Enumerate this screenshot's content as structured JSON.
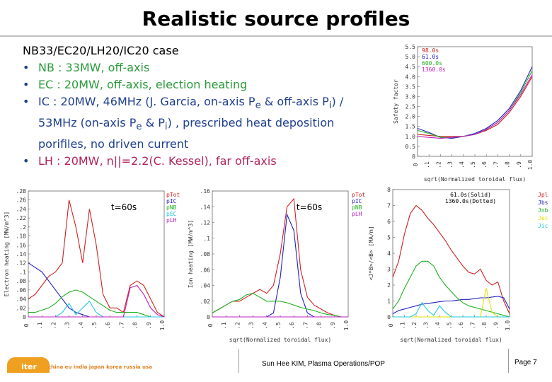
{
  "title": "Realistic source profiles",
  "bullets": {
    "case": "NB33/EC20/LH20/IC20 case",
    "nb": "NB : 33MW, off-axis",
    "ec": "EC : 20MW, off-axis, election heating",
    "ic_line1_a": "IC : 20MW,  46MHz (J. Garcia, on-axis P",
    "ic_sub_e": "e",
    "ic_line1_b": " & off-axis P",
    "ic_sub_i": "i",
    "ic_line1_c": ") /",
    "ic_line2_a": "53MHz (on-axis P",
    "ic_line2_b": " & P",
    "ic_line2_c": ") , prescribed heat deposition",
    "ic_line3": "porifiles, no driven current",
    "lh": "LH : 20MW, n||=2.2(C. Kessel), far off-axis"
  },
  "footer": {
    "center": "Sun Hee KIM, Plasma Operations/POP",
    "page": "Page 7",
    "logo": "iter",
    "countries": "china eu india japan korea russia usa"
  },
  "colors": {
    "red": "#d02020",
    "blue": "#2020c0",
    "green": "#20b020",
    "cyan": "#20c8e0",
    "magenta": "#c020c0",
    "yellow": "#e0e000",
    "purple": "#b040c0"
  },
  "chart_data": [
    {
      "id": "safety",
      "type": "line",
      "title": "",
      "xlabel": "sqrt(Normalized toroidal flux)",
      "ylabel": "Safety factor",
      "xlim": [
        0,
        1.0
      ],
      "ylim": [
        0,
        5.5
      ],
      "xticks": [
        "0",
        ".1",
        ".2",
        ".3",
        ".4",
        ".5",
        ".6",
        ".7",
        ".8",
        ".9",
        "1.0"
      ],
      "yticks": [
        "0",
        "0.5",
        "1.0",
        "1.5",
        "2.0",
        "2.5",
        "3.0",
        "3.5",
        "4.0",
        "4.5",
        "5.0",
        "5.5"
      ],
      "x": [
        0,
        0.1,
        0.2,
        0.3,
        0.4,
        0.5,
        0.6,
        0.7,
        0.8,
        0.9,
        1.0
      ],
      "series": [
        {
          "name": "98.0s",
          "color": "#d02020",
          "values": [
            1.1,
            1.05,
            1.0,
            1.0,
            1.0,
            1.1,
            1.3,
            1.6,
            2.2,
            3.0,
            4.0
          ]
        },
        {
          "name": "61.0s",
          "color": "#2020c0",
          "values": [
            1.4,
            1.2,
            0.95,
            0.9,
            1.0,
            1.15,
            1.4,
            1.8,
            2.4,
            3.3,
            4.5
          ]
        },
        {
          "name": "600.0s",
          "color": "#20b020",
          "values": [
            1.3,
            1.15,
            0.95,
            0.95,
            1.0,
            1.1,
            1.35,
            1.7,
            2.3,
            3.2,
            4.3
          ]
        },
        {
          "name": "1360.0s",
          "color": "#c020c0",
          "values": [
            1.0,
            0.95,
            0.9,
            0.95,
            1.0,
            1.1,
            1.35,
            1.7,
            2.3,
            3.1,
            4.1
          ]
        }
      ],
      "legend": "top-left"
    },
    {
      "id": "electron",
      "type": "line",
      "title": "t=60s",
      "xlabel": "",
      "ylabel": "Electron heating [MW/m^3]",
      "xlim": [
        0,
        1.0
      ],
      "ylim": [
        0,
        0.28
      ],
      "xticks": [
        "0",
        ".1",
        ".2",
        ".3",
        ".4",
        ".5",
        ".6",
        ".7",
        ".8",
        ".9",
        "1.0"
      ],
      "yticks": [
        ".28",
        ".26",
        ".24",
        ".22",
        ".2",
        ".18",
        ".16",
        ".14",
        ".12",
        ".1",
        ".08",
        ".06",
        ".04",
        ".02",
        "0"
      ],
      "x": [
        0,
        0.05,
        0.1,
        0.15,
        0.2,
        0.25,
        0.3,
        0.35,
        0.4,
        0.45,
        0.5,
        0.55,
        0.6,
        0.65,
        0.7,
        0.75,
        0.8,
        0.85,
        0.9,
        0.95,
        1.0
      ],
      "series": [
        {
          "name": "pTot",
          "color": "#d02020",
          "values": [
            0.04,
            0.05,
            0.07,
            0.09,
            0.1,
            0.12,
            0.26,
            0.2,
            0.12,
            0.24,
            0.16,
            0.05,
            0.02,
            0.02,
            0.01,
            0.07,
            0.08,
            0.07,
            0.04,
            0.01,
            0.0
          ]
        },
        {
          "name": "pIC",
          "color": "#2020c0",
          "values": [
            0.12,
            0.11,
            0.1,
            0.08,
            0.06,
            0.04,
            0.02,
            0.01,
            0.005,
            0,
            0,
            0,
            0,
            0,
            0,
            0,
            0,
            0,
            0,
            0,
            0
          ]
        },
        {
          "name": "pNB",
          "color": "#20b020",
          "values": [
            0.01,
            0.01,
            0.015,
            0.02,
            0.03,
            0.045,
            0.055,
            0.06,
            0.055,
            0.045,
            0.035,
            0.025,
            0.015,
            0.01,
            0.01,
            0.01,
            0.01,
            0.005,
            0,
            0,
            0
          ]
        },
        {
          "name": "pEC",
          "color": "#20c8e0",
          "values": [
            0,
            0,
            0,
            0,
            0,
            0.01,
            0.03,
            0.005,
            0.02,
            0.035,
            0.01,
            0,
            0,
            0,
            0,
            0,
            0,
            0,
            0,
            0,
            0
          ]
        },
        {
          "name": "pLH",
          "color": "#c020c0",
          "values": [
            0,
            0,
            0,
            0,
            0,
            0,
            0,
            0,
            0,
            0,
            0,
            0,
            0,
            0,
            0,
            0.065,
            0.07,
            0.05,
            0.02,
            0.005,
            0
          ]
        }
      ]
    },
    {
      "id": "ion",
      "type": "line",
      "title": "t=60s",
      "xlabel": "sqrt(Normalized toroidal flux)",
      "ylabel": "Ion heating [MW/m^3]",
      "xlim": [
        0,
        1.0
      ],
      "ylim": [
        0,
        0.16
      ],
      "xticks": [
        "0",
        ".1",
        ".2",
        ".3",
        ".4",
        ".5",
        ".6",
        ".7",
        ".8",
        ".9",
        "1.0"
      ],
      "yticks": [
        ".16",
        ".14",
        ".12",
        ".1",
        ".08",
        ".06",
        ".04",
        ".02",
        "0"
      ],
      "x": [
        0,
        0.05,
        0.1,
        0.15,
        0.2,
        0.25,
        0.3,
        0.35,
        0.4,
        0.45,
        0.5,
        0.55,
        0.6,
        0.65,
        0.7,
        0.75,
        0.8,
        0.85,
        0.9,
        0.95,
        1.0
      ],
      "series": [
        {
          "name": "pTot",
          "color": "#d02020",
          "values": [
            0.005,
            0.01,
            0.015,
            0.02,
            0.02,
            0.025,
            0.03,
            0.035,
            0.03,
            0.04,
            0.08,
            0.14,
            0.15,
            0.06,
            0.025,
            0.015,
            0.01,
            0.005,
            0.002,
            0,
            0
          ]
        },
        {
          "name": "pIC",
          "color": "#2020c0",
          "values": [
            0,
            0,
            0,
            0,
            0,
            0,
            0,
            0,
            0,
            0.005,
            0.05,
            0.13,
            0.11,
            0.03,
            0.005,
            0,
            0,
            0,
            0,
            0,
            0
          ]
        },
        {
          "name": "pNB",
          "color": "#20b020",
          "values": [
            0.005,
            0.01,
            0.015,
            0.02,
            0.022,
            0.028,
            0.03,
            0.025,
            0.02,
            0.02,
            0.02,
            0.018,
            0.015,
            0.012,
            0.01,
            0.008,
            0.005,
            0.003,
            0.002,
            0,
            0
          ]
        },
        {
          "name": "pLH",
          "color": "#c020c0",
          "values": [
            0,
            0,
            0,
            0,
            0,
            0,
            0,
            0,
            0,
            0,
            0,
            0,
            0,
            0,
            0,
            0,
            0,
            0,
            0,
            0,
            0
          ]
        }
      ]
    },
    {
      "id": "current",
      "type": "line",
      "title": "",
      "xlabel": "sqrt(Normalized toroidal flux)",
      "ylabel": "<J*B>/<B> [MA/m]",
      "xlim": [
        0,
        1.0
      ],
      "ylim": [
        0,
        8
      ],
      "xticks": [
        "0",
        ".1",
        ".2",
        ".3",
        ".4",
        ".5",
        ".6",
        ".7",
        ".8",
        ".9",
        "1.0"
      ],
      "yticks": [
        "8",
        "7",
        "6",
        "5",
        "4",
        "3",
        "2",
        "1",
        "0"
      ],
      "annotation": "61.0s(Solid)\n1360.0s(Dotted)",
      "x": [
        0,
        0.05,
        0.1,
        0.15,
        0.2,
        0.25,
        0.3,
        0.35,
        0.4,
        0.45,
        0.5,
        0.55,
        0.6,
        0.65,
        0.7,
        0.75,
        0.8,
        0.85,
        0.9,
        0.95,
        1.0
      ],
      "series": [
        {
          "name": "Jpl",
          "color": "#d02020",
          "values": [
            2.5,
            3.5,
            5.2,
            6.5,
            7.0,
            6.7,
            6.2,
            5.8,
            5.3,
            4.8,
            4.2,
            3.7,
            3.2,
            2.8,
            2.7,
            3.0,
            2.3,
            2.0,
            2.2,
            1.0,
            0.2
          ]
        },
        {
          "name": "Jbs",
          "color": "#2020c0",
          "values": [
            0.2,
            0.4,
            0.5,
            0.6,
            0.7,
            0.8,
            0.85,
            0.9,
            0.95,
            1.0,
            1.0,
            1.05,
            1.1,
            1.1,
            1.15,
            1.2,
            1.2,
            1.25,
            1.3,
            1.2,
            0.5
          ]
        },
        {
          "name": "Jnb",
          "color": "#20b020",
          "values": [
            0.5,
            1.0,
            1.8,
            2.5,
            3.2,
            3.5,
            3.5,
            3.2,
            2.5,
            2.0,
            1.6,
            1.2,
            0.9,
            0.7,
            0.6,
            0.5,
            0.4,
            0.3,
            0.2,
            0.1,
            0
          ]
        },
        {
          "name": "Jec",
          "color": "#e0e000",
          "values": [
            0,
            0,
            0,
            0,
            0,
            0,
            0,
            0,
            0,
            0,
            0,
            0,
            0,
            0,
            0,
            0,
            1.8,
            0.3,
            0,
            0,
            0
          ]
        },
        {
          "name": "Jic",
          "color": "#20c8e0",
          "values": [
            0,
            0,
            0,
            0,
            0.2,
            0.9,
            0.4,
            0.1,
            0.7,
            0.3,
            0,
            0,
            0,
            0,
            0,
            0,
            0,
            0,
            0,
            0,
            0
          ]
        }
      ],
      "legend": "top-right"
    }
  ]
}
